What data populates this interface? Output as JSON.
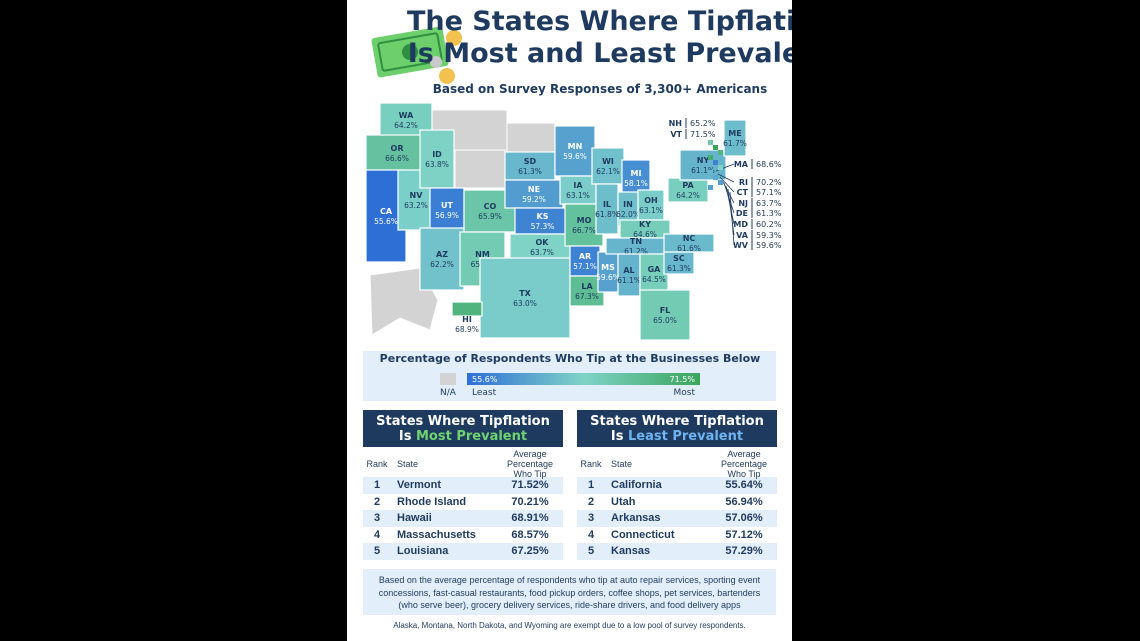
{
  "header": {
    "title_line1": "The States Where Tipflation",
    "title_line2": "Is Most and Least Prevalent",
    "subtitle": "Based on Survey Responses of 3,300+ Americans"
  },
  "map": {
    "states": [
      {
        "abbr": "WA",
        "value": "64.2%"
      },
      {
        "abbr": "OR",
        "value": "66.6%"
      },
      {
        "abbr": "CA",
        "value": "55.6%"
      },
      {
        "abbr": "NV",
        "value": "63.2%"
      },
      {
        "abbr": "ID",
        "value": "63.8%"
      },
      {
        "abbr": "UT",
        "value": "56.9%"
      },
      {
        "abbr": "CO",
        "value": "65.9%"
      },
      {
        "abbr": "AZ",
        "value": "62.2%"
      },
      {
        "abbr": "NM",
        "value": "65.0%"
      },
      {
        "abbr": "SD",
        "value": "61.3%"
      },
      {
        "abbr": "NE",
        "value": "59.2%"
      },
      {
        "abbr": "KS",
        "value": "57.3%"
      },
      {
        "abbr": "OK",
        "value": "63.7%"
      },
      {
        "abbr": "TX",
        "value": "63.0%"
      },
      {
        "abbr": "MN",
        "value": "59.6%"
      },
      {
        "abbr": "IA",
        "value": "63.1%"
      },
      {
        "abbr": "MO",
        "value": "66.7%"
      },
      {
        "abbr": "AR",
        "value": "57.1%"
      },
      {
        "abbr": "LA",
        "value": "67.3%"
      },
      {
        "abbr": "WI",
        "value": "62.1%"
      },
      {
        "abbr": "IL",
        "value": "61.8%"
      },
      {
        "abbr": "MS",
        "value": "59.6%"
      },
      {
        "abbr": "MI",
        "value": "58.1%"
      },
      {
        "abbr": "IN",
        "value": "62.0%"
      },
      {
        "abbr": "OH",
        "value": "63.1%"
      },
      {
        "abbr": "KY",
        "value": "64.6%"
      },
      {
        "abbr": "TN",
        "value": "61.2%"
      },
      {
        "abbr": "AL",
        "value": "61.1%"
      },
      {
        "abbr": "GA",
        "value": "64.5%"
      },
      {
        "abbr": "FL",
        "value": "65.0%"
      },
      {
        "abbr": "SC",
        "value": "61.3%"
      },
      {
        "abbr": "NC",
        "value": "61.6%"
      },
      {
        "abbr": "PA",
        "value": "64.2%"
      },
      {
        "abbr": "NY",
        "value": "61.1%"
      },
      {
        "abbr": "ME",
        "value": "61.7%"
      },
      {
        "abbr": "HI",
        "value": "68.9%"
      }
    ],
    "callouts": [
      {
        "abbr": "NH",
        "value": "65.2%"
      },
      {
        "abbr": "VT",
        "value": "71.5%"
      },
      {
        "abbr": "MA",
        "value": "68.6%"
      },
      {
        "abbr": "RI",
        "value": "70.2%"
      },
      {
        "abbr": "CT",
        "value": "57.1%"
      },
      {
        "abbr": "NJ",
        "value": "63.7%"
      },
      {
        "abbr": "DE",
        "value": "61.3%"
      },
      {
        "abbr": "MD",
        "value": "60.2%"
      },
      {
        "abbr": "VA",
        "value": "59.3%"
      },
      {
        "abbr": "WV",
        "value": "59.6%"
      }
    ]
  },
  "legend": {
    "title": "Percentage of Respondents Who Tip at the Businesses Below",
    "na": "N/A",
    "min": "55.6%",
    "max": "71.5%",
    "least": "Least",
    "most": "Most"
  },
  "tables": [
    {
      "title": "States Where Tipflation",
      "title2": "Is",
      "highlight": "Most Prevalent",
      "headers": [
        "Rank",
        "State",
        "Average Percentage Who Tip"
      ],
      "rows": [
        [
          "1",
          "Vermont",
          "71.52%"
        ],
        [
          "2",
          "Rhode Island",
          "70.21%"
        ],
        [
          "3",
          "Hawaii",
          "68.91%"
        ],
        [
          "4",
          "Massachusetts",
          "68.57%"
        ],
        [
          "5",
          "Louisiana",
          "67.25%"
        ]
      ]
    },
    {
      "title": "States Where Tipflation",
      "title2": "Is",
      "highlight": "Least Prevalent",
      "headers": [
        "Rank",
        "State",
        "Average Percentage Who Tip"
      ],
      "rows": [
        [
          "1",
          "California",
          "55.64%"
        ],
        [
          "2",
          "Utah",
          "56.94%"
        ],
        [
          "3",
          "Arkansas",
          "57.06%"
        ],
        [
          "4",
          "Connecticut",
          "57.12%"
        ],
        [
          "5",
          "Kansas",
          "57.29%"
        ]
      ]
    }
  ],
  "footnote": "Based on the average percentage of respondents who tip at auto repair services, sporting event concessions, fast-casual restaurants, food pickup orders, coffee shops, pet services, bartenders (who serve beer), grocery delivery services, ride-share drivers, and food delivery apps",
  "note": "Alaska, Montana, North Dakota, and Wyoming are exempt due to a low pool of survey respondents."
}
